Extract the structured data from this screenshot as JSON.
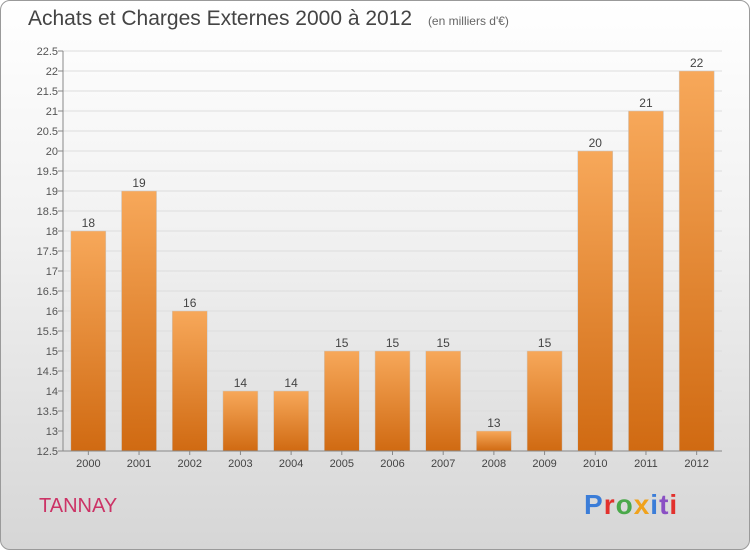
{
  "header": {
    "title": "Achats et Charges Externes 2000 à 2012",
    "unit": "(en milliers d'€)"
  },
  "footer": {
    "commune": "TANNAY",
    "brand": "Proxiti"
  },
  "colors": {
    "bar_light": "#f7a85a",
    "bar_dark": "#d06a12",
    "commune": "#cc3366",
    "brand_letters": [
      "#3b7dd8",
      "#e2312d",
      "#4aa84a",
      "#f0a21c",
      "#3b7dd8",
      "#8a4fc4",
      "#e2312d"
    ]
  },
  "chart_data": {
    "type": "bar",
    "title": "Achats et Charges Externes 2000 à 2012",
    "categories": [
      "2000",
      "2001",
      "2002",
      "2003",
      "2004",
      "2005",
      "2006",
      "2007",
      "2008",
      "2009",
      "2010",
      "2011",
      "2012"
    ],
    "values": [
      18,
      19,
      16,
      14,
      14,
      15,
      15,
      15,
      13,
      15,
      20,
      21,
      22
    ],
    "ylim": [
      12.5,
      22.5
    ],
    "yticks": [
      12.5,
      13,
      13.5,
      14,
      14.5,
      15,
      15.5,
      16,
      16.5,
      17,
      17.5,
      18,
      18.5,
      19,
      19.5,
      20,
      20.5,
      21,
      21.5,
      22,
      22.5
    ],
    "grid": true,
    "xlabel": "",
    "ylabel": ""
  }
}
